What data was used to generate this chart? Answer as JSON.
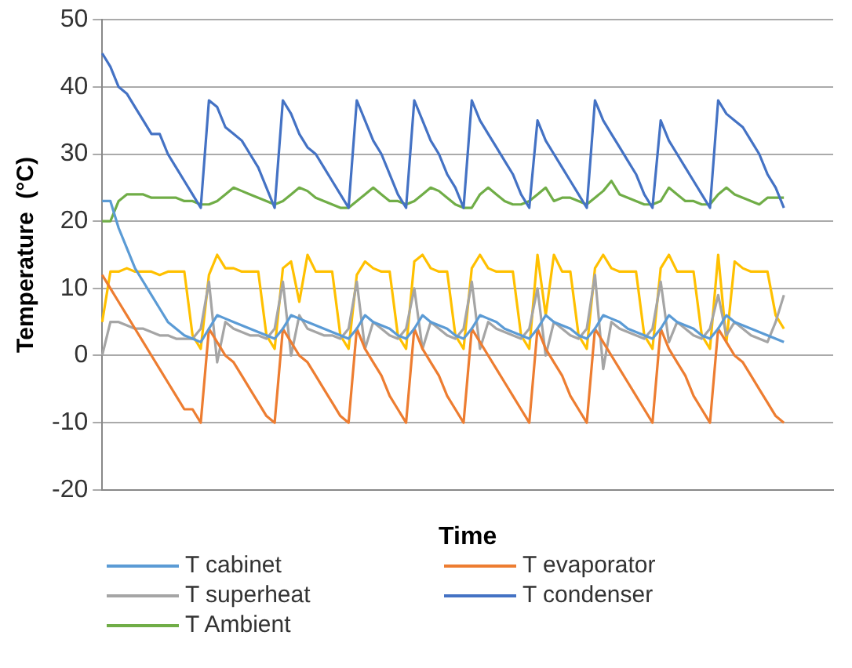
{
  "chart_data": {
    "type": "line",
    "xlabel": "Time",
    "ylabel": "Temperature  (°C)",
    "categories": [
      null,
      null,
      null,
      null,
      null,
      null,
      null,
      null,
      null,
      null,
      null,
      null,
      null,
      null,
      null,
      null,
      null,
      null,
      null,
      null,
      null,
      null,
      null,
      null,
      null,
      null,
      null,
      null,
      null,
      null,
      null,
      null,
      null,
      null,
      null,
      null,
      null,
      null,
      null,
      null,
      null,
      null,
      null,
      null,
      null,
      null,
      null,
      null,
      null,
      null,
      null,
      null,
      null,
      null,
      null,
      null,
      null,
      null,
      null,
      null,
      null,
      null,
      null,
      null,
      null,
      null,
      null,
      null,
      null,
      null,
      null,
      null,
      null,
      null,
      null,
      null,
      null,
      null,
      null,
      null,
      null,
      null,
      null,
      null,
      null,
      null,
      null,
      null,
      null,
      null
    ],
    "ylim": [
      -20,
      50
    ],
    "yticks": [
      -20,
      -10,
      0,
      10,
      20,
      30,
      40,
      50
    ],
    "grid": "y",
    "legend": "bottom",
    "marker": "none",
    "line_style": "solid",
    "series": [
      {
        "name": "T cabinet",
        "color": "#5b9bd5",
        "values": [
          23,
          23,
          19,
          16,
          13,
          11,
          9,
          7,
          5,
          4,
          3,
          2.5,
          2,
          4,
          6,
          5.5,
          5,
          4.5,
          4,
          3.5,
          3,
          2.5,
          4,
          6,
          5.5,
          5,
          4.5,
          4,
          3.5,
          3,
          2.5,
          4,
          6,
          5,
          4.5,
          4,
          3,
          2.5,
          4,
          6,
          5,
          4.5,
          4,
          3,
          2.5,
          4,
          6,
          5.5,
          5,
          4,
          3.5,
          3,
          2.5,
          4,
          6,
          5,
          4.5,
          4,
          3,
          2.5,
          4,
          6,
          5.5,
          5,
          4,
          3.5,
          3,
          2.5,
          4,
          6,
          5,
          4.5,
          4,
          3,
          2.5,
          4,
          6,
          5,
          4.5,
          4,
          3.5,
          3,
          2.5,
          2,
          null,
          null,
          null,
          null,
          null,
          null
        ]
      },
      {
        "name": "T evaporator",
        "color": "#ed7d31",
        "values": [
          12,
          10,
          8,
          6,
          4,
          2,
          0,
          -2,
          -4,
          -6,
          -8,
          -8,
          -10,
          4,
          2,
          0,
          -1,
          -3,
          -5,
          -7,
          -9,
          -10,
          4,
          2,
          0,
          -1,
          -3,
          -5,
          -7,
          -9,
          -10,
          4,
          1,
          -1,
          -3,
          -6,
          -8,
          -10,
          4,
          1,
          -1,
          -3,
          -6,
          -8,
          -10,
          4,
          2,
          0,
          -2,
          -4,
          -6,
          -8,
          -10,
          4,
          1,
          -1,
          -3,
          -6,
          -8,
          -10,
          4,
          2,
          0,
          -2,
          -4,
          -6,
          -8,
          -10,
          4,
          1,
          -1,
          -3,
          -6,
          -8,
          -10,
          4,
          2,
          0,
          -1,
          -3,
          -5,
          -7,
          -9,
          -10,
          null,
          null,
          null,
          null,
          null,
          null
        ]
      },
      {
        "name": "T superheat",
        "color": "#a5a5a5",
        "values": [
          0,
          5,
          5,
          4.5,
          4,
          4,
          3.5,
          3,
          3,
          2.5,
          2.5,
          2.5,
          4,
          11,
          -1,
          5,
          4,
          3.5,
          3,
          3,
          2.5,
          4,
          11,
          0,
          6,
          4,
          3.5,
          3,
          3,
          2.5,
          4,
          11,
          1,
          5,
          4,
          3,
          2.5,
          4,
          10,
          1,
          5,
          4,
          3,
          2.5,
          4,
          11,
          1,
          5,
          4,
          3.5,
          3,
          2.5,
          4,
          10,
          0,
          5,
          4,
          3,
          2.5,
          4,
          12,
          -2,
          5,
          4,
          3.5,
          3,
          2.5,
          4,
          11,
          2,
          5,
          4,
          3,
          2.5,
          4,
          9,
          3,
          5,
          4,
          3,
          2.5,
          2,
          5,
          9,
          null,
          null,
          null,
          null,
          null,
          null
        ]
      },
      {
        "name": "T condenser",
        "color": "#4472c4",
        "values": [
          45,
          43,
          40,
          39,
          37,
          35,
          33,
          33,
          30,
          28,
          26,
          24,
          22,
          38,
          37,
          34,
          33,
          32,
          30,
          28,
          25,
          22,
          38,
          36,
          33,
          31,
          30,
          28,
          26,
          24,
          22,
          38,
          35,
          32,
          30,
          27,
          24,
          22,
          38,
          35,
          32,
          30,
          27,
          25,
          22,
          38,
          35,
          33,
          31,
          29,
          27,
          24,
          22,
          35,
          32,
          30,
          28,
          26,
          24,
          22,
          38,
          35,
          33,
          31,
          29,
          27,
          24,
          22,
          35,
          32,
          30,
          28,
          26,
          24,
          22,
          38,
          36,
          35,
          34,
          32,
          30,
          27,
          25,
          22,
          null,
          null,
          null,
          null,
          null,
          null
        ]
      },
      {
        "name": "T Ambient",
        "color": "#70ad47",
        "values": [
          20,
          20,
          23,
          24,
          24,
          24,
          23.5,
          23.5,
          23.5,
          23.5,
          23,
          23,
          22.5,
          22.5,
          23,
          24,
          25,
          24.5,
          24,
          23.5,
          23,
          22.5,
          23,
          24,
          25,
          24.5,
          23.5,
          23,
          22.5,
          22,
          22,
          23,
          24,
          25,
          24,
          23,
          23,
          22.5,
          23,
          24,
          25,
          24.5,
          23.5,
          22.5,
          22,
          22,
          24,
          25,
          24,
          23,
          22.5,
          22.5,
          23,
          24,
          25,
          23,
          23.5,
          23.5,
          23,
          22.5,
          23.5,
          24.5,
          26,
          24,
          23.5,
          23,
          22.5,
          22.5,
          23,
          25,
          24,
          23,
          23,
          22.5,
          22.5,
          24,
          25,
          24,
          23.5,
          23,
          22.5,
          23.5,
          23.5,
          23.5,
          null,
          null,
          null,
          null,
          null,
          null
        ]
      },
      {
        "color": "#ffc000",
        "values": [
          5,
          12.5,
          12.5,
          13,
          12.5,
          12.5,
          12.5,
          12,
          12.5,
          12.5,
          12.5,
          3,
          1,
          12,
          15,
          13,
          13,
          12.5,
          12.5,
          12.5,
          3,
          1,
          13,
          14,
          8,
          15,
          12.5,
          12.5,
          12.5,
          3,
          1,
          12,
          14,
          13,
          12.5,
          12.5,
          3,
          1,
          14,
          15,
          13,
          12.5,
          12.5,
          3,
          1,
          13,
          15,
          13,
          12.5,
          12.5,
          12.5,
          3,
          1,
          15,
          6,
          15,
          12.5,
          12.5,
          3,
          1,
          13,
          15,
          13,
          12.5,
          12.5,
          12.5,
          3,
          1,
          13,
          15,
          12.5,
          12.5,
          12.5,
          3,
          1,
          15,
          2,
          14,
          13,
          12.5,
          12.5,
          12.5,
          6,
          4,
          null,
          null,
          null,
          null,
          null,
          null
        ]
      }
    ]
  }
}
